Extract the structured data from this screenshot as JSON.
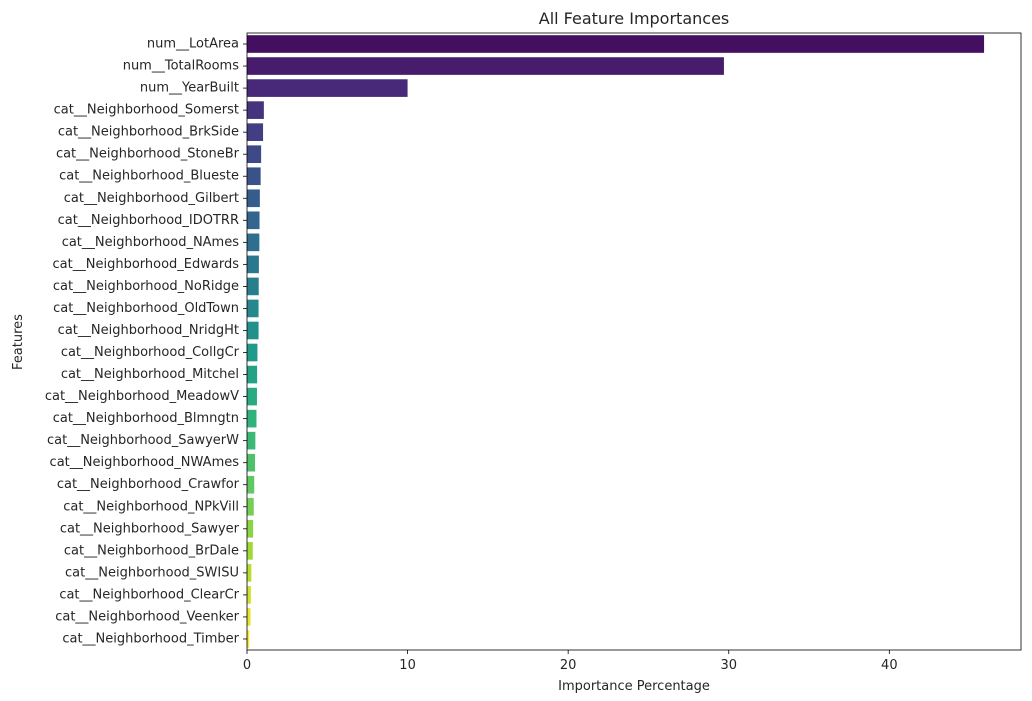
{
  "chart_data": {
    "type": "bar",
    "orientation": "horizontal",
    "title": "All Feature Importances",
    "xlabel": "Importance Percentage",
    "ylabel": "Features",
    "xlim": [
      0,
      48.2
    ],
    "xticks": [
      0,
      10,
      20,
      30,
      40
    ],
    "grid": false,
    "palette": "viridis",
    "categories": [
      "num__LotArea",
      "num__TotalRooms",
      "num__YearBuilt",
      "cat__Neighborhood_Somerst",
      "cat__Neighborhood_BrkSide",
      "cat__Neighborhood_StoneBr",
      "cat__Neighborhood_Blueste",
      "cat__Neighborhood_Gilbert",
      "cat__Neighborhood_IDOTRR",
      "cat__Neighborhood_NAmes",
      "cat__Neighborhood_Edwards",
      "cat__Neighborhood_NoRidge",
      "cat__Neighborhood_OldTown",
      "cat__Neighborhood_NridgHt",
      "cat__Neighborhood_CollgCr",
      "cat__Neighborhood_Mitchel",
      "cat__Neighborhood_MeadowV",
      "cat__Neighborhood_Blmngtn",
      "cat__Neighborhood_SawyerW",
      "cat__Neighborhood_NWAmes",
      "cat__Neighborhood_Crawfor",
      "cat__Neighborhood_NPkVill",
      "cat__Neighborhood_Sawyer",
      "cat__Neighborhood_BrDale",
      "cat__Neighborhood_SWISU",
      "cat__Neighborhood_ClearCr",
      "cat__Neighborhood_Veenker",
      "cat__Neighborhood_Timber"
    ],
    "values": [
      45.9,
      29.7,
      10.0,
      1.05,
      1.0,
      0.88,
      0.85,
      0.8,
      0.78,
      0.77,
      0.74,
      0.73,
      0.72,
      0.72,
      0.65,
      0.63,
      0.62,
      0.59,
      0.52,
      0.5,
      0.45,
      0.42,
      0.38,
      0.36,
      0.27,
      0.24,
      0.22,
      0.14
    ]
  }
}
